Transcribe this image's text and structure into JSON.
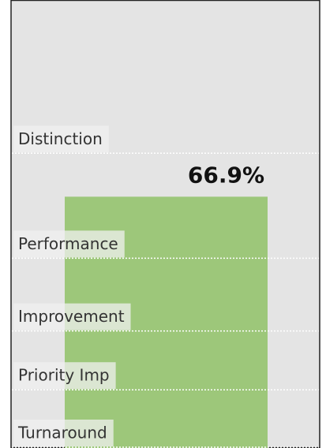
{
  "chart_data": {
    "type": "bar",
    "values": [
      66.9
    ],
    "value_labels": [
      "66.9%"
    ],
    "color": "#9dc77a",
    "ylim": [
      31,
      95
    ],
    "reference_lines": [
      {
        "label": "Distinction",
        "value": 73
      },
      {
        "label": "Performance",
        "value": 58
      },
      {
        "label": "Improvement",
        "value": 47.6
      },
      {
        "label": "Priority Imp",
        "value": 39.2
      },
      {
        "label": "Turnaround",
        "value": 31
      }
    ]
  }
}
